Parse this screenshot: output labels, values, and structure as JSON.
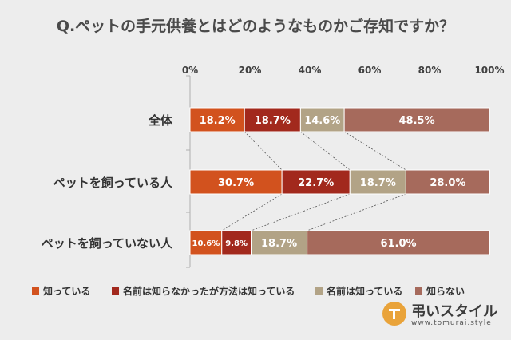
{
  "title": "Q.ペットの手元供養とはどのようなものかご存知ですか？",
  "chart_data": {
    "type": "bar",
    "orientation": "horizontal",
    "stacked": true,
    "percent_stacked": true,
    "categories": [
      "全体",
      "ペットを飼っている人",
      "ペットを飼っていない人"
    ],
    "series": [
      {
        "name": "知っている",
        "color": "#d2521e",
        "values": [
          18.2,
          30.7,
          10.6
        ],
        "labels": [
          "18.2%",
          "30.7%",
          "10.6%"
        ]
      },
      {
        "name": "名前は知らなかったが方法は知っている",
        "color": "#a2291d",
        "values": [
          18.7,
          22.7,
          9.8
        ],
        "labels": [
          "18.7%",
          "22.7%",
          "9.8%"
        ]
      },
      {
        "name": "名前は知っている",
        "color": "#b2a386",
        "values": [
          14.6,
          18.7,
          18.7
        ],
        "labels": [
          "14.6%",
          "18.7%",
          "18.7%"
        ]
      },
      {
        "name": "知らない",
        "color": "#a66a5c",
        "values": [
          48.5,
          28.0,
          61.0
        ],
        "labels": [
          "48.5%",
          "28.0%",
          "61.0%"
        ]
      }
    ],
    "xlim": [
      0,
      100
    ],
    "x_ticks": [
      "0%",
      "20%",
      "40%",
      "60%",
      "80%",
      "100%"
    ],
    "x_ticks_position": "top",
    "series_lines": true,
    "legend_position": "bottom",
    "grid": false
  },
  "logo": {
    "name": "弔いスタイル",
    "url": "www.tomurai.style",
    "icon": "tomurai-logo-icon",
    "accent": "#e9a33a"
  }
}
